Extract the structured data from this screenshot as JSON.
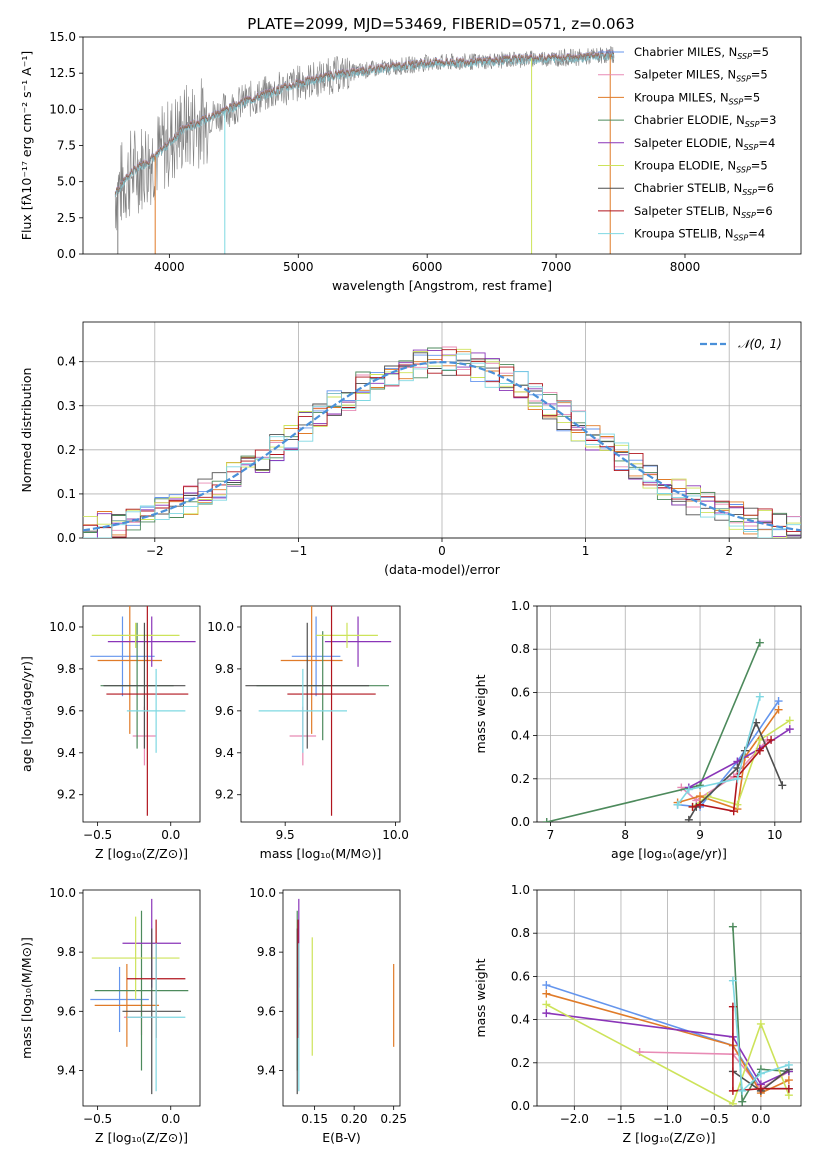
{
  "figure_title": "PLATE=2099, MJD=53469, FIBERID=0571, z=0.063",
  "colors": {
    "data": "#808080",
    "gauss": "#4a90d9",
    "models": [
      "#6495ed",
      "#e88bb5",
      "#e07b29",
      "#4d8a5c",
      "#8a35b8",
      "#cde35a",
      "#4f4f4f",
      "#b0151e",
      "#7fd8e2"
    ]
  },
  "models": [
    {
      "name": "Chabrier MILES",
      "nssp": "5",
      "color": "#6495ed"
    },
    {
      "name": "Salpeter MILES",
      "nssp": "5",
      "color": "#e88bb5"
    },
    {
      "name": "Kroupa MILES",
      "nssp": "5",
      "color": "#e07b29"
    },
    {
      "name": "Chabrier ELODIE",
      "nssp": "3",
      "color": "#4d8a5c"
    },
    {
      "name": "Salpeter ELODIE",
      "nssp": "4",
      "color": "#8a35b8"
    },
    {
      "name": "Kroupa ELODIE",
      "nssp": "5",
      "color": "#cde35a"
    },
    {
      "name": "Chabrier STELIB",
      "nssp": "6",
      "color": "#4f4f4f"
    },
    {
      "name": "Salpeter STELIB",
      "nssp": "6",
      "color": "#b0151e"
    },
    {
      "name": "Kroupa STELIB",
      "nssp": "4",
      "color": "#7fd8e2"
    }
  ],
  "legend_prefix_sub": "SSP",
  "chart_data": [
    {
      "id": "spectrum",
      "type": "line",
      "xlabel": "wavelength [Angstrom, rest frame]",
      "ylabel": "Flux [fλ10⁻¹⁷ erg cm⁻² s⁻¹ A⁻¹]",
      "xlim": [
        3330,
        8900
      ],
      "ylim": [
        0,
        15
      ],
      "xticks": [
        4000,
        5000,
        6000,
        7000,
        8000
      ],
      "yticks": [
        0.0,
        2.5,
        5.0,
        7.5,
        10.0,
        12.5,
        15.0
      ],
      "continuum": {
        "x": [
          3580,
          3700,
          3900,
          4100,
          4300,
          4600,
          5000,
          5300,
          5600,
          6000,
          6400,
          6800,
          7200,
          7450
        ],
        "y": [
          4.2,
          5.6,
          6.8,
          8.6,
          9.4,
          10.6,
          11.8,
          12.4,
          12.8,
          13.2,
          13.3,
          13.5,
          13.6,
          13.8
        ]
      }
    },
    {
      "id": "residuals",
      "type": "bar",
      "xlabel": "(data-model)/error",
      "ylabel": "Normed distribution",
      "xlim": [
        -2.5,
        2.5
      ],
      "ylim": [
        0,
        0.49
      ],
      "xticks": [
        -2,
        -1,
        0,
        1,
        2
      ],
      "yticks": [
        0.0,
        0.1,
        0.2,
        0.3,
        0.4
      ],
      "bin_width": 0.1,
      "legend_label": "𝒩(0, 1)",
      "grid": true
    },
    {
      "id": "age_vs_Z",
      "type": "scatter",
      "xlabel": "Z [log₁₀(Z/Z⊙)]",
      "ylabel": "age  [log₁₀(age/yr)]",
      "xlim": [
        -0.6,
        0.2
      ],
      "ylim": [
        9.07,
        10.1
      ],
      "xticks": [
        -0.5,
        0.0
      ],
      "yticks": [
        9.2,
        9.4,
        9.6,
        9.8,
        10.0
      ],
      "points": [
        {
          "x": -0.33,
          "xerr": 0.22,
          "y": 9.86,
          "yerr": 0.19
        },
        {
          "x": -0.18,
          "xerr": 0.08,
          "y": 9.48,
          "yerr": 0.14
        },
        {
          "x": -0.28,
          "xerr": 0.22,
          "y": 9.84,
          "yerr": 0.35
        },
        {
          "x": -0.23,
          "xerr": 0.25,
          "y": 9.72,
          "yerr": 0.3
        },
        {
          "x": -0.13,
          "xerr": 0.3,
          "y": 9.93,
          "yerr": 0.12
        },
        {
          "x": -0.24,
          "xerr": 0.3,
          "y": 9.96,
          "yerr": 0.06
        },
        {
          "x": -0.18,
          "xerr": 0.28,
          "y": 9.72,
          "yerr": 0.3
        },
        {
          "x": -0.16,
          "xerr": 0.28,
          "y": 9.68,
          "yerr": 0.58
        },
        {
          "x": -0.1,
          "xerr": 0.2,
          "y": 9.6,
          "yerr": 0.2
        }
      ]
    },
    {
      "id": "age_vs_mass",
      "type": "scatter",
      "xlabel": "mass [log₁₀(M/M⊙)]",
      "xlim": [
        9.3,
        10.02
      ],
      "ylim": [
        9.07,
        10.1
      ],
      "xticks": [
        9.5,
        10.0
      ],
      "yticks": [
        9.2,
        9.4,
        9.6,
        9.8,
        10.0
      ],
      "points": [
        {
          "x": 9.64,
          "xerr": 0.11,
          "y": 9.86,
          "yerr": 0.19
        },
        {
          "x": 9.58,
          "xerr": 0.06,
          "y": 9.48,
          "yerr": 0.14
        },
        {
          "x": 9.62,
          "xerr": 0.14,
          "y": 9.84,
          "yerr": 0.35
        },
        {
          "x": 9.67,
          "xerr": 0.3,
          "y": 9.72,
          "yerr": 0.26
        },
        {
          "x": 9.83,
          "xerr": 0.15,
          "y": 9.93,
          "yerr": 0.12
        },
        {
          "x": 9.78,
          "xerr": 0.14,
          "y": 9.96,
          "yerr": 0.06
        },
        {
          "x": 9.6,
          "xerr": 0.28,
          "y": 9.72,
          "yerr": 0.3
        },
        {
          "x": 9.71,
          "xerr": 0.2,
          "y": 9.68,
          "yerr": 0.58
        },
        {
          "x": 9.58,
          "xerr": 0.2,
          "y": 9.6,
          "yerr": 0.2
        }
      ]
    },
    {
      "id": "weight_vs_age",
      "type": "line",
      "xlabel": "age  [log₁₀(age/yr)]",
      "ylabel": "mass weight",
      "xlim": [
        6.82,
        10.35
      ],
      "ylim": [
        0,
        1
      ],
      "xticks": [
        7,
        8,
        9,
        10
      ],
      "yticks": [
        0.0,
        0.2,
        0.4,
        0.6,
        0.8,
        1.0
      ],
      "grid": true,
      "series": [
        {
          "x": [
            8.7,
            9.0,
            9.5,
            10.05
          ],
          "y": [
            0.08,
            0.07,
            0.28,
            0.56
          ]
        },
        {
          "x": [
            8.75,
            8.95,
            9.45,
            9.9
          ],
          "y": [
            0.16,
            0.1,
            0.21,
            0.38
          ]
        },
        {
          "x": [
            8.7,
            9.0,
            9.5,
            9.6,
            10.05
          ],
          "y": [
            0.09,
            0.12,
            0.06,
            0.3,
            0.52
          ]
        },
        {
          "x": [
            6.95,
            9.0,
            9.8
          ],
          "y": [
            0.0,
            0.17,
            0.83
          ]
        },
        {
          "x": [
            8.85,
            9.5,
            9.8,
            10.2
          ],
          "y": [
            0.16,
            0.28,
            0.34,
            0.43
          ]
        },
        {
          "x": [
            8.9,
            9.1,
            9.5,
            9.8,
            10.2
          ],
          "y": [
            0.07,
            0.12,
            0.08,
            0.38,
            0.47
          ]
        },
        {
          "x": [
            8.85,
            8.95,
            9.5,
            9.6,
            9.75,
            10.1
          ],
          "y": [
            0.01,
            0.07,
            0.25,
            0.33,
            0.46,
            0.17
          ]
        },
        {
          "x": [
            8.9,
            9.0,
            9.45,
            9.5,
            9.8,
            9.95
          ],
          "y": [
            0.07,
            0.08,
            0.05,
            0.21,
            0.33,
            0.38
          ]
        },
        {
          "x": [
            8.7,
            8.85,
            9.5,
            9.8
          ],
          "y": [
            0.08,
            0.15,
            0.2,
            0.58
          ]
        }
      ]
    },
    {
      "id": "mass_vs_Z",
      "type": "scatter",
      "xlabel": "Z [log₁₀(Z/Z⊙)]",
      "ylabel": "mass [log₁₀(M/M⊙)]",
      "xlim": [
        -0.6,
        0.2
      ],
      "ylim": [
        9.28,
        10.01
      ],
      "xticks": [
        -0.5,
        0.0
      ],
      "yticks": [
        9.4,
        9.6,
        9.8,
        10.0
      ],
      "points": [
        {
          "x": -0.35,
          "xerr": 0.2,
          "y": 9.64,
          "yerr": 0.11
        },
        {
          "x": -0.2,
          "xerr": 0.12,
          "y": 9.58,
          "yerr": 0.06
        },
        {
          "x": -0.3,
          "xerr": 0.22,
          "y": 9.62,
          "yerr": 0.14
        },
        {
          "x": -0.2,
          "xerr": 0.32,
          "y": 9.67,
          "yerr": 0.27
        },
        {
          "x": -0.13,
          "xerr": 0.2,
          "y": 9.83,
          "yerr": 0.15
        },
        {
          "x": -0.24,
          "xerr": 0.3,
          "y": 9.78,
          "yerr": 0.14
        },
        {
          "x": -0.13,
          "xerr": 0.2,
          "y": 9.6,
          "yerr": 0.28
        },
        {
          "x": -0.1,
          "xerr": 0.2,
          "y": 9.71,
          "yerr": 0.2
        },
        {
          "x": -0.1,
          "xerr": 0.2,
          "y": 9.58,
          "yerr": 0.25
        }
      ]
    },
    {
      "id": "mass_vs_ebv",
      "type": "scatter",
      "xlabel": "E(B-V)",
      "xlim": [
        0.11,
        0.258
      ],
      "ylim": [
        9.28,
        10.01
      ],
      "xticks": [
        0.15,
        0.2,
        0.25
      ],
      "yticks": [
        9.4,
        9.6,
        9.8,
        10.0
      ],
      "points": [
        {
          "x": 0.128,
          "y": 9.64,
          "yerr": 0.11,
          "ci": 0
        },
        {
          "x": 0.13,
          "y": 9.58,
          "yerr": 0.06,
          "ci": 1
        },
        {
          "x": 0.25,
          "y": 9.62,
          "yerr": 0.14,
          "ci": 2
        },
        {
          "x": 0.128,
          "y": 9.67,
          "yerr": 0.27,
          "ci": 3
        },
        {
          "x": 0.13,
          "y": 9.83,
          "yerr": 0.15,
          "ci": 4
        },
        {
          "x": 0.147,
          "y": 9.65,
          "yerr": 0.2,
          "ci": 5
        },
        {
          "x": 0.128,
          "y": 9.6,
          "yerr": 0.28,
          "ci": 6
        },
        {
          "x": 0.129,
          "y": 9.71,
          "yerr": 0.2,
          "ci": 7
        },
        {
          "x": 0.13,
          "y": 9.58,
          "yerr": 0.25,
          "ci": 8
        }
      ]
    },
    {
      "id": "weight_vs_Z",
      "type": "line",
      "xlabel": "Z [log₁₀(Z/Z⊙)]",
      "ylabel": "mass weight",
      "xlim": [
        -2.4,
        0.43
      ],
      "ylim": [
        0,
        1
      ],
      "xticks": [
        -2.0,
        -1.5,
        -1.0,
        -0.5,
        0.0
      ],
      "yticks": [
        0.0,
        0.2,
        0.4,
        0.6,
        0.8,
        1.0
      ],
      "grid": true,
      "series": [
        {
          "x": [
            -2.3,
            -0.3,
            0.0,
            0.3
          ],
          "y": [
            0.56,
            0.28,
            0.08,
            0.08
          ]
        },
        {
          "x": [
            -1.3,
            -0.3,
            0.0,
            0.3
          ],
          "y": [
            0.25,
            0.24,
            0.08,
            0.16
          ]
        },
        {
          "x": [
            -2.3,
            -0.3,
            0.0,
            0.3
          ],
          "y": [
            0.52,
            0.28,
            0.06,
            0.12
          ]
        },
        {
          "x": [
            -0.3,
            -0.2,
            0.0,
            0.3
          ],
          "y": [
            0.83,
            0.02,
            0.17,
            0.16
          ]
        },
        {
          "x": [
            -2.3,
            -0.3,
            0.0,
            0.3
          ],
          "y": [
            0.43,
            0.32,
            0.1,
            0.16
          ]
        },
        {
          "x": [
            -2.3,
            -0.3,
            0.0,
            0.3
          ],
          "y": [
            0.47,
            0.01,
            0.38,
            0.05
          ]
        },
        {
          "x": [
            -0.3,
            0.0,
            0.3
          ],
          "y": [
            0.16,
            0.07,
            0.17
          ]
        },
        {
          "x": [
            -0.3,
            -0.3,
            0.0,
            0.3
          ],
          "y": [
            0.46,
            0.07,
            0.08,
            0.08
          ]
        },
        {
          "x": [
            -0.3,
            -0.2,
            0.0,
            0.3
          ],
          "y": [
            0.58,
            0.07,
            0.15,
            0.19
          ]
        }
      ]
    }
  ]
}
